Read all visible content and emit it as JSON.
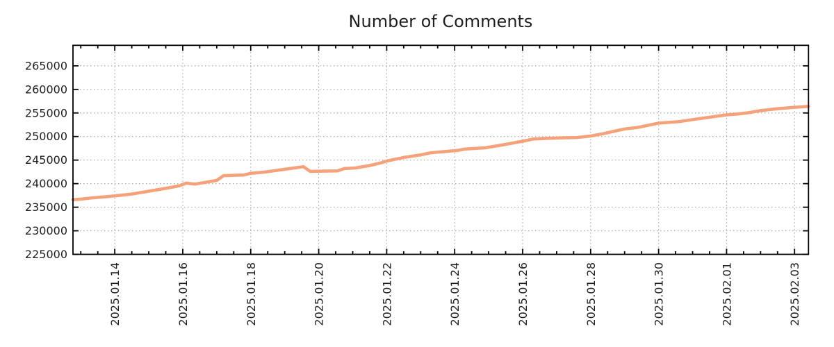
{
  "page": {
    "background": "#ffffff"
  },
  "chart_data": {
    "type": "line",
    "title": "Number of Comments",
    "legend": "none",
    "grid": {
      "show": true,
      "color": "#a6a6a6",
      "style": "dotted"
    },
    "axis_color": "#000000",
    "text_color": "#1f1f1f",
    "x_axis": {
      "note": "x = day index on a Jan-2025 timeline; 32 = 2025.02.01, 34 = 2025.02.03",
      "range": [
        12.77,
        34.41
      ],
      "minor_tick_step": 0.5,
      "major_ticks": [
        {
          "x": 14,
          "label": "2025.01.14"
        },
        {
          "x": 16,
          "label": "2025.01.16"
        },
        {
          "x": 18,
          "label": "2025.01.18"
        },
        {
          "x": 20,
          "label": "2025.01.20"
        },
        {
          "x": 22,
          "label": "2025.01.22"
        },
        {
          "x": 24,
          "label": "2025.01.24"
        },
        {
          "x": 26,
          "label": "2025.01.26"
        },
        {
          "x": 28,
          "label": "2025.01.28"
        },
        {
          "x": 30,
          "label": "2025.01.30"
        },
        {
          "x": 32,
          "label": "2025.02.01"
        },
        {
          "x": 34,
          "label": "2025.02.03"
        }
      ]
    },
    "y_axis": {
      "range": [
        225000,
        269350
      ],
      "tick_step": 5000,
      "ticks": [
        {
          "v": 225000,
          "label": "225000"
        },
        {
          "v": 230000,
          "label": "230000"
        },
        {
          "v": 235000,
          "label": "235000"
        },
        {
          "v": 240000,
          "label": "240000"
        },
        {
          "v": 245000,
          "label": "245000"
        },
        {
          "v": 250000,
          "label": "250000"
        },
        {
          "v": 255000,
          "label": "255000"
        },
        {
          "v": 260000,
          "label": "260000"
        },
        {
          "v": 265000,
          "label": "265000"
        }
      ]
    },
    "series": [
      {
        "name": "comments",
        "color": "#f5a179",
        "line_width": 4.5,
        "points": [
          [
            12.77,
            236600
          ],
          [
            13.0,
            236700
          ],
          [
            13.3,
            236950
          ],
          [
            13.7,
            237200
          ],
          [
            14.0,
            237400
          ],
          [
            14.5,
            237800
          ],
          [
            15.0,
            238400
          ],
          [
            15.5,
            239000
          ],
          [
            15.9,
            239550
          ],
          [
            16.1,
            240100
          ],
          [
            16.35,
            239900
          ],
          [
            16.6,
            240200
          ],
          [
            17.0,
            240700
          ],
          [
            17.2,
            241700
          ],
          [
            17.8,
            241850
          ],
          [
            18.0,
            242200
          ],
          [
            18.4,
            242450
          ],
          [
            18.75,
            242800
          ],
          [
            19.0,
            243050
          ],
          [
            19.3,
            243350
          ],
          [
            19.55,
            243600
          ],
          [
            19.75,
            242600
          ],
          [
            20.1,
            242650
          ],
          [
            20.55,
            242700
          ],
          [
            20.75,
            243200
          ],
          [
            21.1,
            243350
          ],
          [
            21.5,
            243850
          ],
          [
            21.8,
            244350
          ],
          [
            22.0,
            244800
          ],
          [
            22.5,
            245550
          ],
          [
            23.0,
            246100
          ],
          [
            23.3,
            246550
          ],
          [
            23.85,
            246900
          ],
          [
            24.1,
            247050
          ],
          [
            24.3,
            247350
          ],
          [
            24.9,
            247600
          ],
          [
            25.4,
            248200
          ],
          [
            26.0,
            249000
          ],
          [
            26.3,
            249450
          ],
          [
            26.7,
            249600
          ],
          [
            27.1,
            249700
          ],
          [
            27.6,
            249800
          ],
          [
            28.0,
            250100
          ],
          [
            28.4,
            250650
          ],
          [
            29.0,
            251600
          ],
          [
            29.4,
            251950
          ],
          [
            29.8,
            252550
          ],
          [
            30.0,
            252850
          ],
          [
            30.6,
            253150
          ],
          [
            31.0,
            253600
          ],
          [
            31.5,
            254100
          ],
          [
            32.0,
            254600
          ],
          [
            32.35,
            254800
          ],
          [
            32.65,
            255050
          ],
          [
            33.0,
            255500
          ],
          [
            33.5,
            255900
          ],
          [
            34.0,
            256200
          ],
          [
            34.41,
            256400
          ]
        ]
      }
    ]
  }
}
